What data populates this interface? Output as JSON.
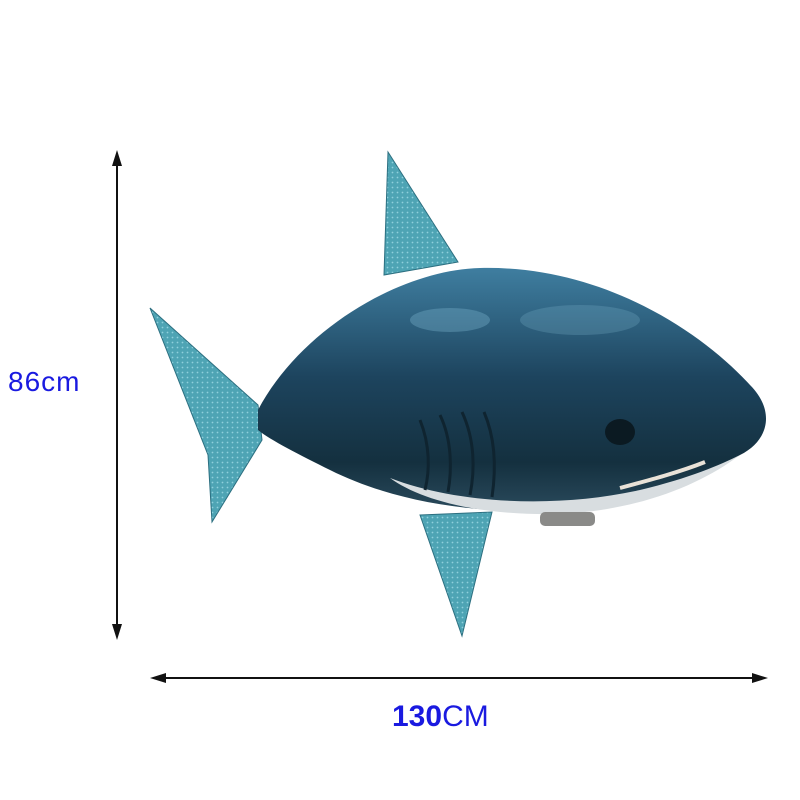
{
  "dimensions": {
    "height_label": "86cm",
    "width_number": "130",
    "width_unit": "CM"
  },
  "colors": {
    "label": "#1a1ae0",
    "arrow": "#111111",
    "body": "#1f4660",
    "fin": "#4aa0b0",
    "belly": "#d8dde0"
  }
}
